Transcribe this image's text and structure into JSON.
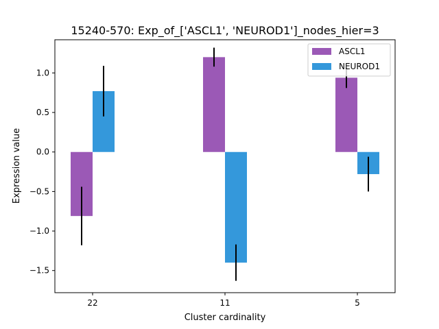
{
  "chart_data": {
    "type": "bar",
    "title": "15240-570: Exp_of_['ASCL1', 'NEUROD1']_nodes_hier=3",
    "xlabel": "Cluster cardinality",
    "ylabel": "Expression value",
    "categories": [
      "22",
      "11",
      "5"
    ],
    "series": [
      {
        "name": "ASCL1",
        "color": "#9b59b6",
        "values": [
          -0.81,
          1.2,
          0.94
        ],
        "error": [
          0.37,
          0.12,
          0.13
        ]
      },
      {
        "name": "NEUROD1",
        "color": "#3498db",
        "values": [
          0.77,
          -1.4,
          -0.28
        ],
        "error": [
          0.32,
          0.23,
          0.22
        ]
      }
    ],
    "ylim": [
      -1.78,
      1.42
    ],
    "yticks": [
      {
        "value": 1.0,
        "label": "1.0"
      },
      {
        "value": 0.5,
        "label": "0.5"
      },
      {
        "value": 0.0,
        "label": "0.0"
      },
      {
        "value": -0.5,
        "label": "−0.5"
      },
      {
        "value": -1.0,
        "label": "−1.0"
      },
      {
        "value": -1.5,
        "label": "−1.5"
      }
    ],
    "grid": false,
    "legend_position": "top-right"
  }
}
